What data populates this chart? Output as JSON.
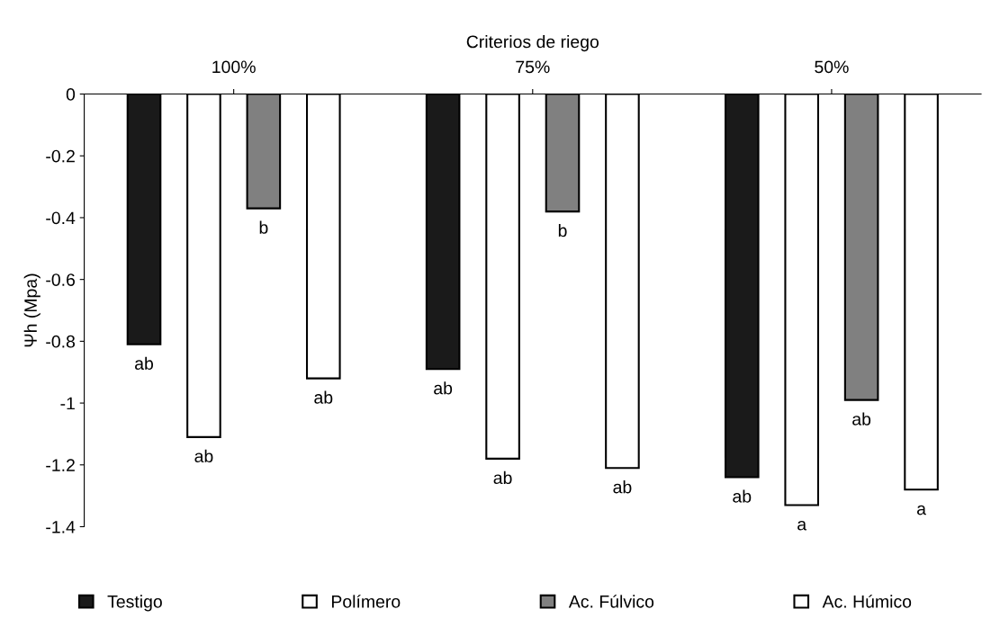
{
  "chart_data": {
    "type": "bar",
    "xlabel": "Criterios de riego",
    "ylabel": "Ψh (Mpa)",
    "categories": [
      "100%",
      "75%",
      "50%"
    ],
    "series": [
      {
        "name": "Testigo",
        "color": "#1a1a1a",
        "values": [
          -0.81,
          -0.89,
          -1.24
        ],
        "value_labels": [
          "ab",
          "ab",
          "ab"
        ]
      },
      {
        "name": "Polímero",
        "color": "#ffffff",
        "values": [
          -1.11,
          -1.18,
          -1.33
        ],
        "value_labels": [
          "ab",
          "ab",
          "a"
        ]
      },
      {
        "name": "Ac. Fúlvico",
        "color": "#808080",
        "values": [
          -0.37,
          -0.38,
          -0.99
        ],
        "value_labels": [
          "b",
          "b",
          "ab"
        ]
      },
      {
        "name": "Ac. Húmico",
        "color": "#ffffff",
        "values": [
          -0.92,
          -1.21,
          -1.28
        ],
        "value_labels": [
          "ab",
          "ab",
          "a"
        ]
      }
    ],
    "ylim": [
      -1.4,
      0
    ],
    "yticks": [
      0,
      -0.2,
      -0.4,
      -0.6,
      -0.8,
      -1,
      -1.2,
      -1.4
    ],
    "grid": false,
    "legend": "bottom"
  }
}
